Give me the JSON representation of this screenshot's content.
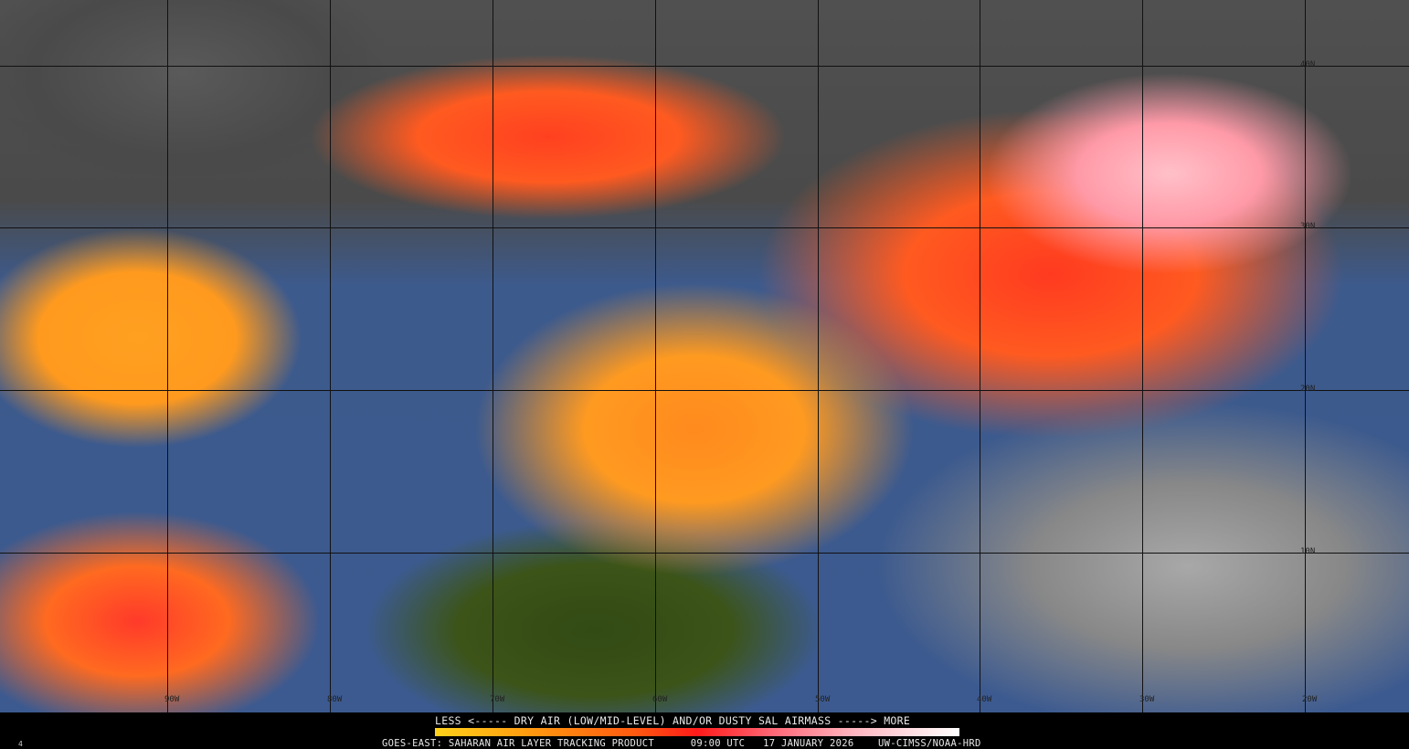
{
  "legend": {
    "title": "LESS <----- DRY AIR (LOW/MID-LEVEL) AND/OR DUSTY SAL AIRMASS -----> MORE",
    "colors": [
      "#ffd21a",
      "#ff9a10",
      "#ff5a10",
      "#ff1a1a",
      "#ff6a7a",
      "#ffb6c0",
      "#ffffff"
    ]
  },
  "footer": {
    "product": "GOES-EAST: SAHARAN AIR LAYER TRACKING PRODUCT",
    "time": "09:00 UTC",
    "date": "17 JANUARY 2026",
    "credit": "UW-CIMSS/NOAA-HRD"
  },
  "corner_label": "4",
  "latitude_labels": [
    "40N",
    "30N",
    "20N",
    "10N"
  ],
  "longitude_labels": [
    "90W",
    "80W",
    "70W",
    "60W",
    "50W",
    "40W",
    "30W",
    "20W"
  ]
}
